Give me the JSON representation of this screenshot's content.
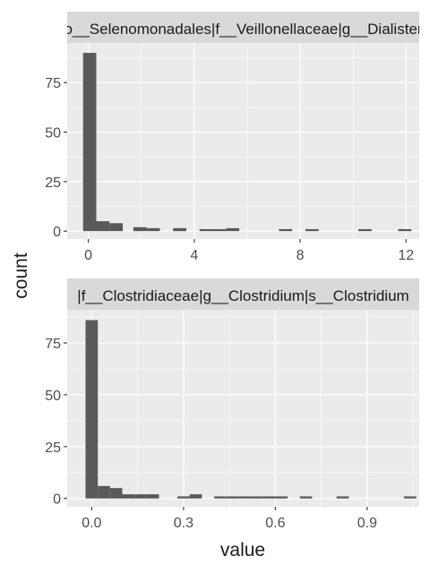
{
  "chart_data": {
    "type": "histogram",
    "xlabel": "value",
    "ylabel": "count",
    "colors": {
      "panel_bg": "#EBEBEB",
      "strip_bg": "#D9D9D9",
      "grid": "#FFFFFF",
      "bar": "#595959",
      "tick": "#333333",
      "text": "#1A1A1A"
    },
    "panels": [
      {
        "strip_label": "o__Selenomonadales|f__Veillonellaceae|g__Dialister",
        "xlim": [
          -0.8,
          12.5
        ],
        "ylim": [
          -4,
          95
        ],
        "x_ticks": [
          0,
          4,
          8,
          12
        ],
        "x_tick_labels": [
          "0",
          "4",
          "8",
          "12"
        ],
        "y_ticks": [
          0,
          25,
          50,
          75
        ],
        "y_tick_labels": [
          "0",
          "25",
          "50",
          "75"
        ],
        "bars": [
          {
            "x0": -0.2,
            "x1": 0.3,
            "count": 90
          },
          {
            "x0": 0.3,
            "x1": 0.8,
            "count": 5
          },
          {
            "x0": 0.8,
            "x1": 1.3,
            "count": 4
          },
          {
            "x0": 1.7,
            "x1": 2.2,
            "count": 2
          },
          {
            "x0": 2.2,
            "x1": 2.7,
            "count": 1.5
          },
          {
            "x0": 3.2,
            "x1": 3.7,
            "count": 1.5
          },
          {
            "x0": 4.2,
            "x1": 4.7,
            "count": 1
          },
          {
            "x0": 4.7,
            "x1": 5.2,
            "count": 1
          },
          {
            "x0": 5.2,
            "x1": 5.7,
            "count": 1.5
          },
          {
            "x0": 7.2,
            "x1": 7.7,
            "count": 1
          },
          {
            "x0": 8.2,
            "x1": 8.7,
            "count": 1
          },
          {
            "x0": 10.2,
            "x1": 10.7,
            "count": 1
          },
          {
            "x0": 11.7,
            "x1": 12.2,
            "count": 1
          }
        ]
      },
      {
        "strip_label": "|f__Clostridiaceae|g__Clostridium|s__Clostridium",
        "xlim": [
          -0.08,
          1.07
        ],
        "ylim": [
          -4,
          91
        ],
        "x_ticks": [
          0.0,
          0.3,
          0.6,
          0.9
        ],
        "x_tick_labels": [
          "0.0",
          "0.3",
          "0.6",
          "0.9"
        ],
        "y_ticks": [
          0,
          25,
          50,
          75
        ],
        "y_tick_labels": [
          "0",
          "25",
          "50",
          "75"
        ],
        "bars": [
          {
            "x0": -0.02,
            "x1": 0.02,
            "count": 86
          },
          {
            "x0": 0.02,
            "x1": 0.06,
            "count": 6
          },
          {
            "x0": 0.06,
            "x1": 0.1,
            "count": 5
          },
          {
            "x0": 0.1,
            "x1": 0.14,
            "count": 2
          },
          {
            "x0": 0.14,
            "x1": 0.18,
            "count": 2
          },
          {
            "x0": 0.18,
            "x1": 0.22,
            "count": 2
          },
          {
            "x0": 0.28,
            "x1": 0.32,
            "count": 1
          },
          {
            "x0": 0.32,
            "x1": 0.36,
            "count": 2
          },
          {
            "x0": 0.4,
            "x1": 0.44,
            "count": 1
          },
          {
            "x0": 0.44,
            "x1": 0.48,
            "count": 1
          },
          {
            "x0": 0.48,
            "x1": 0.52,
            "count": 1
          },
          {
            "x0": 0.52,
            "x1": 0.56,
            "count": 1
          },
          {
            "x0": 0.56,
            "x1": 0.6,
            "count": 1
          },
          {
            "x0": 0.6,
            "x1": 0.64,
            "count": 1
          },
          {
            "x0": 0.68,
            "x1": 0.72,
            "count": 1
          },
          {
            "x0": 0.8,
            "x1": 0.84,
            "count": 1
          },
          {
            "x0": 1.02,
            "x1": 1.06,
            "count": 1
          }
        ]
      }
    ]
  }
}
